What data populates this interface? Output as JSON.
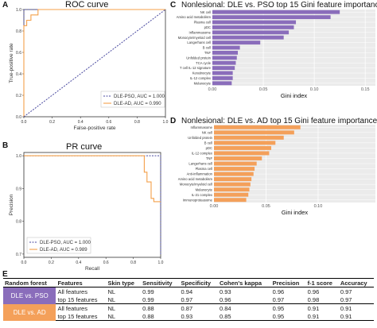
{
  "panels": {
    "A": {
      "letter": "A",
      "title": "ROC curve"
    },
    "B": {
      "letter": "B",
      "title": "PR curve"
    },
    "C": {
      "letter": "C",
      "title": "Nonlesional: DLE vs. PSO top 15 Gini feature importance"
    },
    "D": {
      "letter": "D",
      "title": "Nonlesional: DLE vs. AD top 15 Gini feature importance"
    },
    "E": {
      "letter": "E"
    }
  },
  "colors": {
    "pso": "#4a4aa0",
    "ad": "#f4a04a",
    "bar_c": "#8a6dbb",
    "bar_d": "#f4a05a",
    "grid": "#e6e6e6",
    "panel_bg": "#ebebeb"
  },
  "chart_data": [
    {
      "id": "roc",
      "type": "line",
      "title": "ROC curve",
      "xlabel": "False-positive rate",
      "ylabel": "True-positive rate",
      "xlim": [
        0,
        1
      ],
      "ylim": [
        0,
        1
      ],
      "xticks": [
        "0.0",
        "0.2",
        "0.4",
        "0.6",
        "0.8",
        "1.0"
      ],
      "yticks": [
        "0.0",
        "0.2",
        "0.4",
        "0.6",
        "0.8",
        "1.0"
      ],
      "legend": "bottom-right",
      "series": [
        {
          "name": "DLE-PSO, AUC = 1.000",
          "color": "#4a4aa0",
          "dash": true,
          "x": [
            0,
            0,
            1
          ],
          "y": [
            0,
            1,
            1
          ]
        },
        {
          "name": "DLE-AD, AUC = 0.990",
          "color": "#f4a04a",
          "dash": false,
          "x": [
            0,
            0,
            0.02,
            0.02,
            0.05,
            0.05,
            0.1,
            0.1,
            1
          ],
          "y": [
            0,
            0.85,
            0.85,
            0.9,
            0.9,
            0.95,
            0.95,
            1,
            1
          ]
        },
        {
          "name": "",
          "color": "#4a4aa0",
          "dash": true,
          "x": [
            0,
            1
          ],
          "y": [
            0,
            1
          ]
        }
      ]
    },
    {
      "id": "pr",
      "type": "line",
      "title": "PR curve",
      "xlabel": "Recall",
      "ylabel": "Precision",
      "xlim": [
        0,
        1
      ],
      "ylim": [
        0.69,
        1.01
      ],
      "xticks": [
        "0.0",
        "0.2",
        "0.4",
        "0.6",
        "0.8",
        "1.0"
      ],
      "ytickvals": [
        0.7,
        0.8,
        0.9,
        1.0
      ],
      "yticks": [
        "0.7",
        "0.8",
        "0.9",
        "1.0"
      ],
      "legend": "bottom-left",
      "series": [
        {
          "name": "DLE-PSO, AUC = 1.000",
          "color": "#4a4aa0",
          "dash": true,
          "x": [
            0,
            1,
            1
          ],
          "y": [
            1,
            1,
            0.7
          ]
        },
        {
          "name": "DLE-AD, AUC = 0.989",
          "color": "#f4a04a",
          "dash": false,
          "x": [
            0,
            0.88,
            0.88,
            0.9,
            0.9,
            0.93,
            0.93,
            0.95,
            0.95,
            1.0
          ],
          "y": [
            1,
            1,
            0.95,
            0.95,
            0.92,
            0.92,
            0.87,
            0.87,
            0.86,
            0.86
          ]
        }
      ]
    },
    {
      "id": "gini_pso",
      "type": "bar",
      "orientation": "horizontal",
      "xlabel": "Gini index",
      "xlim": [
        0,
        0.16
      ],
      "xticks": [
        "0.00",
        "0.05",
        "0.10",
        "0.15"
      ],
      "xtickvals": [
        0,
        0.05,
        0.1,
        0.15
      ],
      "categories": [
        "NK cell",
        "Amino acid metabolism",
        "Plasma cell",
        "pDC",
        "Inflammasome",
        "Monocyte/myeloid cell",
        "Langerhans cell",
        "B cell",
        "TNF",
        "Unfolded protein",
        "TCA cycle",
        "T cell IL-12 signature",
        "Keratinocyte",
        "IL-12 complex",
        "Melanocyte"
      ],
      "values": [
        0.125,
        0.116,
        0.082,
        0.08,
        0.075,
        0.07,
        0.047,
        0.027,
        0.025,
        0.024,
        0.023,
        0.022,
        0.02,
        0.02,
        0.019
      ]
    },
    {
      "id": "gini_ad",
      "type": "bar",
      "orientation": "horizontal",
      "xlabel": "Gini index",
      "xlim": [
        0,
        0.155
      ],
      "xticks": [
        "0.00",
        "0.05",
        "0.10"
      ],
      "xtickvals": [
        0,
        0.05,
        0.1
      ],
      "categories": [
        "Inflammasome",
        "NK cell",
        "Unfolded protein",
        "B cell",
        "pDC",
        "IL-12 complex",
        "TNF",
        "Langerhans cell",
        "Plasma cell",
        "Anti-inflammation",
        "Amino acid metabolism",
        "Monocyte/myeloid cell",
        "Melanocyte",
        "IL-21 complex",
        "Immunoproteasome"
      ],
      "values": [
        0.083,
        0.077,
        0.067,
        0.059,
        0.055,
        0.053,
        0.046,
        0.041,
        0.039,
        0.038,
        0.036,
        0.035,
        0.034,
        0.033,
        0.031
      ]
    },
    {
      "id": "metrics",
      "type": "table",
      "columns": [
        "Random forest",
        "Features",
        "Skin type",
        "Sensitivity",
        "Specificity",
        "Cohen's kappa",
        "Precision",
        "f-1 score",
        "Accuracy"
      ],
      "groups": [
        {
          "label": "DLE vs. PSO",
          "rows": [
            [
              "All features",
              "NL",
              "0.99",
              "0.94",
              "0.93",
              "0.96",
              "0.96",
              "0.97"
            ],
            [
              "top 15 features",
              "NL",
              "0.99",
              "0.97",
              "0.96",
              "0.97",
              "0.98",
              "0.97"
            ]
          ]
        },
        {
          "label": "DLE vs. AD",
          "rows": [
            [
              "All features",
              "NL",
              "0.88",
              "0.87",
              "0.84",
              "0.95",
              "0.91",
              "0.91"
            ],
            [
              "top 15 features",
              "NL",
              "0.88",
              "0.93",
              "0.85",
              "0.95",
              "0.91",
              "0.91"
            ]
          ]
        }
      ]
    }
  ]
}
